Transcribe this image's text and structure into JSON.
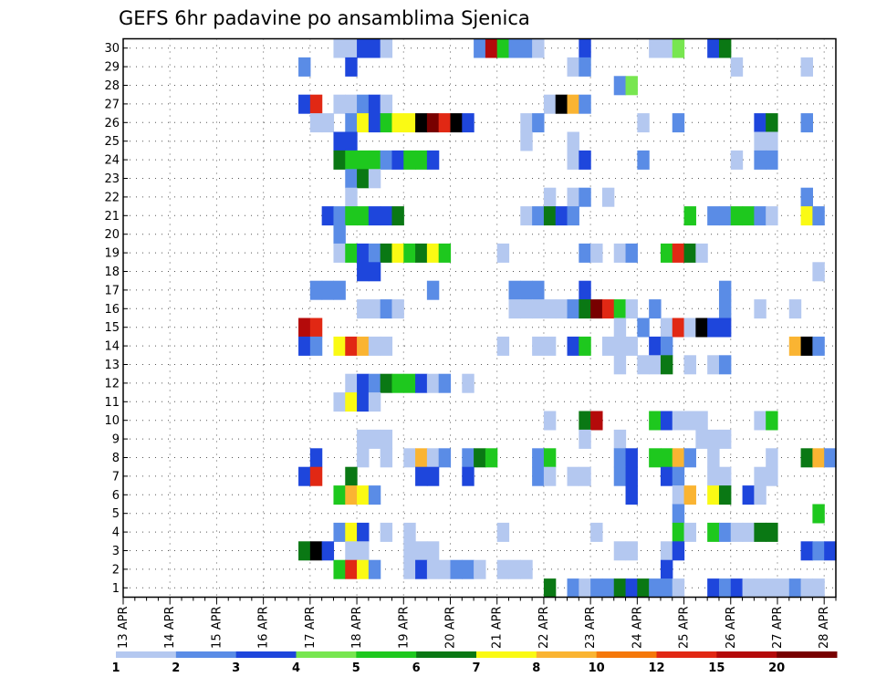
{
  "chart_data": {
    "type": "heatmap",
    "title": "GEFS 6hr padavine po ansamblima Sjenica",
    "xlabel": "",
    "ylabel": "",
    "x_tick_labels": [
      "13 APR",
      "14 APR",
      "15 APR",
      "16 APR",
      "17 APR",
      "18 APR",
      "19 APR",
      "20 APR",
      "21 APR",
      "22 APR",
      "23 APR",
      "24 APR",
      "25 APR",
      "26 APR",
      "27 APR",
      "28 APR"
    ],
    "y_tick_labels": [
      "1",
      "2",
      "3",
      "4",
      "5",
      "6",
      "7",
      "8",
      "9",
      "10",
      "11",
      "12",
      "13",
      "14",
      "15",
      "16",
      "17",
      "18",
      "19",
      "20",
      "21",
      "22",
      "23",
      "24",
      "25",
      "26",
      "27",
      "28",
      "29",
      "30"
    ],
    "xlim": [
      0,
      61
    ],
    "ylim": [
      0.5,
      30.5
    ],
    "grid": true,
    "legend_placement": "bottom",
    "legend": {
      "labels": [
        "1",
        "2",
        "3",
        "4",
        "5",
        "6",
        "7",
        "8",
        "10",
        "12",
        "15",
        "20"
      ],
      "colors": [
        "#b4c8f0",
        "#5a8ce6",
        "#1e46dc",
        "#78e650",
        "#1ec81e",
        "#0a7814",
        "#fafa14",
        "#fab432",
        "#f5780a",
        "#e12814",
        "#b40a0a",
        "#780000"
      ]
    },
    "cells": [
      [
        18,
        30,
        1
      ],
      [
        19,
        30,
        1
      ],
      [
        20,
        30,
        3
      ],
      [
        21,
        30,
        3
      ],
      [
        22,
        30,
        1
      ],
      [
        30,
        30,
        2
      ],
      [
        31,
        30,
        11
      ],
      [
        32,
        30,
        5
      ],
      [
        33,
        30,
        2
      ],
      [
        34,
        30,
        2
      ],
      [
        35,
        30,
        1
      ],
      [
        39,
        30,
        3
      ],
      [
        45,
        30,
        1
      ],
      [
        46,
        30,
        1
      ],
      [
        47,
        30,
        4
      ],
      [
        50,
        30,
        3
      ],
      [
        51,
        30,
        6
      ],
      [
        15,
        29,
        2
      ],
      [
        19,
        29,
        3
      ],
      [
        38,
        29,
        1
      ],
      [
        39,
        29,
        2
      ],
      [
        52,
        29,
        1
      ],
      [
        58,
        29,
        1
      ],
      [
        42,
        28,
        2
      ],
      [
        43,
        28,
        4
      ],
      [
        15,
        27,
        3
      ],
      [
        16,
        27,
        10
      ],
      [
        18,
        27,
        1
      ],
      [
        19,
        27,
        1
      ],
      [
        20,
        27,
        2
      ],
      [
        21,
        27,
        3
      ],
      [
        22,
        27,
        1
      ],
      [
        36,
        27,
        1
      ],
      [
        37,
        27,
        14
      ],
      [
        38,
        27,
        8
      ],
      [
        39,
        27,
        2
      ],
      [
        16,
        26,
        1
      ],
      [
        17,
        26,
        1
      ],
      [
        19,
        26,
        2
      ],
      [
        20,
        26,
        7
      ],
      [
        21,
        26,
        3
      ],
      [
        22,
        26,
        5
      ],
      [
        23,
        26,
        7
      ],
      [
        24,
        26,
        7
      ],
      [
        25,
        26,
        13
      ],
      [
        26,
        26,
        12
      ],
      [
        27,
        26,
        10
      ],
      [
        28,
        26,
        13
      ],
      [
        29,
        26,
        3
      ],
      [
        34,
        26,
        1
      ],
      [
        35,
        26,
        2
      ],
      [
        44,
        26,
        1
      ],
      [
        47,
        26,
        2
      ],
      [
        54,
        26,
        3
      ],
      [
        55,
        26,
        6
      ],
      [
        58,
        26,
        2
      ],
      [
        18,
        25,
        3
      ],
      [
        19,
        25,
        3
      ],
      [
        34,
        25,
        1
      ],
      [
        38,
        25,
        1
      ],
      [
        54,
        25,
        1
      ],
      [
        55,
        25,
        1
      ],
      [
        18,
        24,
        6
      ],
      [
        19,
        24,
        5
      ],
      [
        20,
        24,
        5
      ],
      [
        21,
        24,
        5
      ],
      [
        22,
        24,
        2
      ],
      [
        23,
        24,
        3
      ],
      [
        24,
        24,
        5
      ],
      [
        25,
        24,
        5
      ],
      [
        26,
        24,
        3
      ],
      [
        38,
        24,
        1
      ],
      [
        39,
        24,
        3
      ],
      [
        44,
        24,
        2
      ],
      [
        52,
        24,
        1
      ],
      [
        54,
        24,
        2
      ],
      [
        55,
        24,
        2
      ],
      [
        19,
        23,
        2
      ],
      [
        20,
        23,
        6
      ],
      [
        21,
        23,
        1
      ],
      [
        19,
        22,
        1
      ],
      [
        36,
        22,
        1
      ],
      [
        38,
        22,
        1
      ],
      [
        39,
        22,
        2
      ],
      [
        41,
        22,
        1
      ],
      [
        58,
        22,
        2
      ],
      [
        17,
        21,
        3
      ],
      [
        18,
        21,
        2
      ],
      [
        19,
        21,
        5
      ],
      [
        20,
        21,
        5
      ],
      [
        21,
        21,
        3
      ],
      [
        22,
        21,
        3
      ],
      [
        23,
        21,
        6
      ],
      [
        34,
        21,
        1
      ],
      [
        35,
        21,
        2
      ],
      [
        36,
        21,
        6
      ],
      [
        37,
        21,
        3
      ],
      [
        38,
        21,
        2
      ],
      [
        48,
        21,
        5
      ],
      [
        50,
        21,
        2
      ],
      [
        51,
        21,
        2
      ],
      [
        52,
        21,
        5
      ],
      [
        53,
        21,
        5
      ],
      [
        54,
        21,
        2
      ],
      [
        55,
        21,
        1
      ],
      [
        58,
        21,
        7
      ],
      [
        59,
        21,
        2
      ],
      [
        18,
        20,
        2
      ],
      [
        18,
        19,
        1
      ],
      [
        19,
        19,
        5
      ],
      [
        20,
        19,
        3
      ],
      [
        21,
        19,
        2
      ],
      [
        22,
        19,
        6
      ],
      [
        23,
        19,
        7
      ],
      [
        24,
        19,
        5
      ],
      [
        25,
        19,
        6
      ],
      [
        26,
        19,
        7
      ],
      [
        27,
        19,
        5
      ],
      [
        32,
        19,
        1
      ],
      [
        39,
        19,
        2
      ],
      [
        40,
        19,
        1
      ],
      [
        42,
        19,
        1
      ],
      [
        43,
        19,
        2
      ],
      [
        46,
        19,
        5
      ],
      [
        47,
        19,
        10
      ],
      [
        48,
        19,
        6
      ],
      [
        49,
        19,
        1
      ],
      [
        20,
        18,
        3
      ],
      [
        21,
        18,
        3
      ],
      [
        59,
        18,
        1
      ],
      [
        16,
        17,
        2
      ],
      [
        17,
        17,
        2
      ],
      [
        18,
        17,
        2
      ],
      [
        26,
        17,
        2
      ],
      [
        33,
        17,
        2
      ],
      [
        34,
        17,
        2
      ],
      [
        35,
        17,
        2
      ],
      [
        39,
        17,
        3
      ],
      [
        51,
        17,
        2
      ],
      [
        20,
        16,
        1
      ],
      [
        21,
        16,
        1
      ],
      [
        22,
        16,
        2
      ],
      [
        23,
        16,
        1
      ],
      [
        33,
        16,
        1
      ],
      [
        34,
        16,
        1
      ],
      [
        35,
        16,
        1
      ],
      [
        36,
        16,
        1
      ],
      [
        37,
        16,
        1
      ],
      [
        38,
        16,
        2
      ],
      [
        39,
        16,
        6
      ],
      [
        40,
        16,
        12
      ],
      [
        41,
        16,
        10
      ],
      [
        42,
        16,
        5
      ],
      [
        43,
        16,
        1
      ],
      [
        45,
        16,
        2
      ],
      [
        51,
        16,
        2
      ],
      [
        54,
        16,
        1
      ],
      [
        57,
        16,
        1
      ],
      [
        15,
        15,
        11
      ],
      [
        16,
        15,
        10
      ],
      [
        42,
        15,
        1
      ],
      [
        44,
        15,
        2
      ],
      [
        46,
        15,
        1
      ],
      [
        47,
        15,
        10
      ],
      [
        48,
        15,
        1
      ],
      [
        49,
        15,
        13
      ],
      [
        50,
        15,
        3
      ],
      [
        51,
        15,
        3
      ],
      [
        15,
        14,
        3
      ],
      [
        16,
        14,
        2
      ],
      [
        18,
        14,
        7
      ],
      [
        19,
        14,
        10
      ],
      [
        20,
        14,
        8
      ],
      [
        21,
        14,
        1
      ],
      [
        22,
        14,
        1
      ],
      [
        32,
        14,
        1
      ],
      [
        35,
        14,
        1
      ],
      [
        36,
        14,
        1
      ],
      [
        38,
        14,
        3
      ],
      [
        39,
        14,
        5
      ],
      [
        41,
        14,
        1
      ],
      [
        42,
        14,
        1
      ],
      [
        43,
        14,
        1
      ],
      [
        45,
        14,
        3
      ],
      [
        46,
        14,
        2
      ],
      [
        57,
        14,
        8
      ],
      [
        58,
        14,
        15
      ],
      [
        59,
        14,
        2
      ],
      [
        42,
        13,
        1
      ],
      [
        44,
        13,
        1
      ],
      [
        45,
        13,
        1
      ],
      [
        46,
        13,
        6
      ],
      [
        48,
        13,
        1
      ],
      [
        50,
        13,
        1
      ],
      [
        51,
        13,
        2
      ],
      [
        19,
        12,
        1
      ],
      [
        20,
        12,
        3
      ],
      [
        21,
        12,
        2
      ],
      [
        22,
        12,
        6
      ],
      [
        23,
        12,
        5
      ],
      [
        24,
        12,
        5
      ],
      [
        25,
        12,
        3
      ],
      [
        26,
        12,
        1
      ],
      [
        27,
        12,
        2
      ],
      [
        29,
        12,
        1
      ],
      [
        18,
        11,
        1
      ],
      [
        19,
        11,
        7
      ],
      [
        20,
        11,
        3
      ],
      [
        21,
        11,
        1
      ],
      [
        36,
        10,
        1
      ],
      [
        39,
        10,
        6
      ],
      [
        40,
        10,
        11
      ],
      [
        45,
        10,
        5
      ],
      [
        46,
        10,
        3
      ],
      [
        47,
        10,
        1
      ],
      [
        48,
        10,
        1
      ],
      [
        49,
        10,
        1
      ],
      [
        54,
        10,
        1
      ],
      [
        55,
        10,
        5
      ],
      [
        20,
        9,
        1
      ],
      [
        21,
        9,
        1
      ],
      [
        22,
        9,
        1
      ],
      [
        39,
        9,
        1
      ],
      [
        42,
        9,
        1
      ],
      [
        49,
        9,
        1
      ],
      [
        50,
        9,
        1
      ],
      [
        51,
        9,
        1
      ],
      [
        16,
        8,
        3
      ],
      [
        20,
        8,
        1
      ],
      [
        22,
        8,
        1
      ],
      [
        24,
        8,
        1
      ],
      [
        25,
        8,
        8
      ],
      [
        26,
        8,
        1
      ],
      [
        27,
        8,
        2
      ],
      [
        29,
        8,
        2
      ],
      [
        30,
        8,
        6
      ],
      [
        31,
        8,
        5
      ],
      [
        35,
        8,
        2
      ],
      [
        36,
        8,
        5
      ],
      [
        42,
        8,
        2
      ],
      [
        43,
        8,
        3
      ],
      [
        45,
        8,
        5
      ],
      [
        46,
        8,
        5
      ],
      [
        47,
        8,
        8
      ],
      [
        48,
        8,
        2
      ],
      [
        50,
        8,
        1
      ],
      [
        55,
        8,
        1
      ],
      [
        58,
        8,
        6
      ],
      [
        59,
        8,
        8
      ],
      [
        60,
        8,
        2
      ],
      [
        15,
        7,
        3
      ],
      [
        16,
        7,
        10
      ],
      [
        19,
        7,
        6
      ],
      [
        25,
        7,
        3
      ],
      [
        26,
        7,
        3
      ],
      [
        29,
        7,
        3
      ],
      [
        35,
        7,
        2
      ],
      [
        36,
        7,
        1
      ],
      [
        38,
        7,
        1
      ],
      [
        39,
        7,
        1
      ],
      [
        42,
        7,
        2
      ],
      [
        43,
        7,
        3
      ],
      [
        46,
        7,
        3
      ],
      [
        47,
        7,
        2
      ],
      [
        50,
        7,
        1
      ],
      [
        51,
        7,
        1
      ],
      [
        54,
        7,
        1
      ],
      [
        55,
        7,
        1
      ],
      [
        18,
        6,
        5
      ],
      [
        19,
        6,
        8
      ],
      [
        20,
        6,
        7
      ],
      [
        21,
        6,
        2
      ],
      [
        43,
        6,
        3
      ],
      [
        47,
        6,
        1
      ],
      [
        48,
        6,
        8
      ],
      [
        50,
        6,
        7
      ],
      [
        51,
        6,
        6
      ],
      [
        53,
        6,
        3
      ],
      [
        54,
        6,
        1
      ],
      [
        47,
        5,
        2
      ],
      [
        59,
        5,
        5
      ],
      [
        18,
        4,
        2
      ],
      [
        19,
        4,
        7
      ],
      [
        20,
        4,
        3
      ],
      [
        22,
        4,
        1
      ],
      [
        24,
        4,
        1
      ],
      [
        32,
        4,
        1
      ],
      [
        40,
        4,
        1
      ],
      [
        47,
        4,
        5
      ],
      [
        48,
        4,
        1
      ],
      [
        50,
        4,
        5
      ],
      [
        51,
        4,
        2
      ],
      [
        52,
        4,
        1
      ],
      [
        53,
        4,
        1
      ],
      [
        54,
        4,
        6
      ],
      [
        55,
        4,
        6
      ],
      [
        15,
        3,
        6
      ],
      [
        16,
        3,
        13
      ],
      [
        17,
        3,
        3
      ],
      [
        19,
        3,
        1
      ],
      [
        20,
        3,
        1
      ],
      [
        24,
        3,
        1
      ],
      [
        25,
        3,
        1
      ],
      [
        26,
        3,
        1
      ],
      [
        42,
        3,
        1
      ],
      [
        43,
        3,
        1
      ],
      [
        46,
        3,
        1
      ],
      [
        47,
        3,
        3
      ],
      [
        58,
        3,
        3
      ],
      [
        59,
        3,
        2
      ],
      [
        60,
        3,
        3
      ],
      [
        18,
        2,
        5
      ],
      [
        19,
        2,
        10
      ],
      [
        20,
        2,
        7
      ],
      [
        21,
        2,
        2
      ],
      [
        24,
        2,
        1
      ],
      [
        25,
        2,
        3
      ],
      [
        26,
        2,
        1
      ],
      [
        27,
        2,
        1
      ],
      [
        28,
        2,
        2
      ],
      [
        29,
        2,
        2
      ],
      [
        30,
        2,
        1
      ],
      [
        32,
        2,
        1
      ],
      [
        33,
        2,
        1
      ],
      [
        34,
        2,
        1
      ],
      [
        46,
        2,
        3
      ],
      [
        36,
        1,
        6
      ],
      [
        38,
        1,
        2
      ],
      [
        39,
        1,
        1
      ],
      [
        40,
        1,
        2
      ],
      [
        41,
        1,
        2
      ],
      [
        42,
        1,
        6
      ],
      [
        43,
        1,
        3
      ],
      [
        44,
        1,
        6
      ],
      [
        45,
        1,
        2
      ],
      [
        46,
        1,
        2
      ],
      [
        47,
        1,
        1
      ],
      [
        50,
        1,
        3
      ],
      [
        51,
        1,
        2
      ],
      [
        52,
        1,
        3
      ],
      [
        53,
        1,
        1
      ],
      [
        54,
        1,
        1
      ],
      [
        55,
        1,
        1
      ],
      [
        56,
        1,
        1
      ],
      [
        57,
        1,
        2
      ],
      [
        58,
        1,
        1
      ],
      [
        59,
        1,
        1
      ]
    ]
  }
}
